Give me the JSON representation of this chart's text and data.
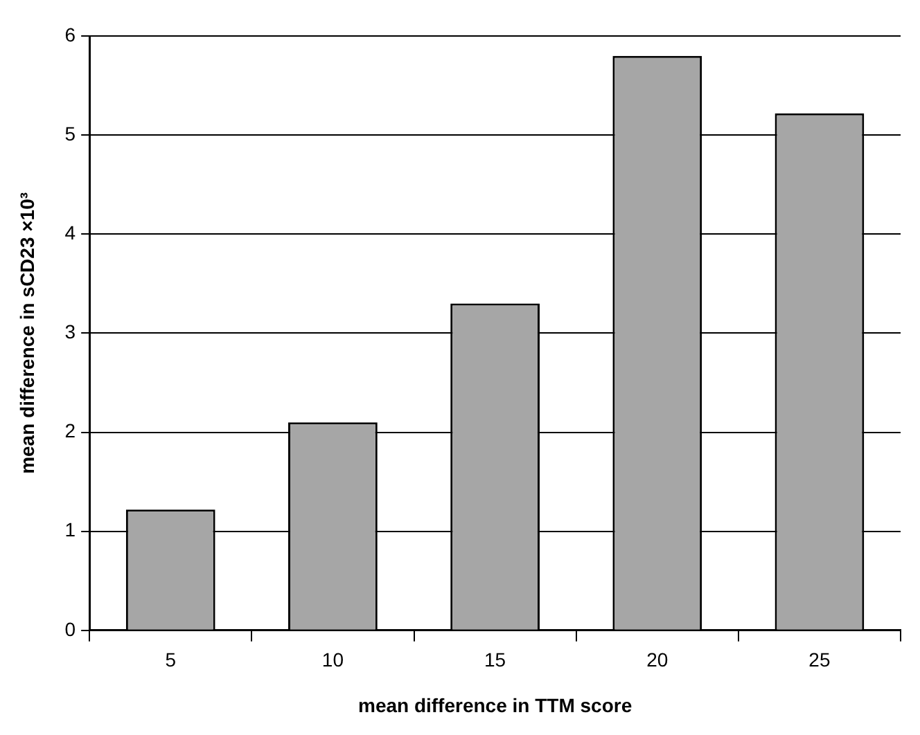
{
  "chart_data": {
    "type": "bar",
    "xlabel": "mean difference in TTM score",
    "ylabel": "mean difference in sCD23 ×10³",
    "categories": [
      "5",
      "10",
      "15",
      "20",
      "25"
    ],
    "values": [
      1.22,
      2.1,
      3.3,
      5.8,
      5.22
    ],
    "color": "#a6a6a6",
    "ylim": [
      0,
      6
    ],
    "yticks": [
      0,
      1,
      2,
      3,
      4,
      5,
      6
    ],
    "grid": "y",
    "legend": false
  }
}
